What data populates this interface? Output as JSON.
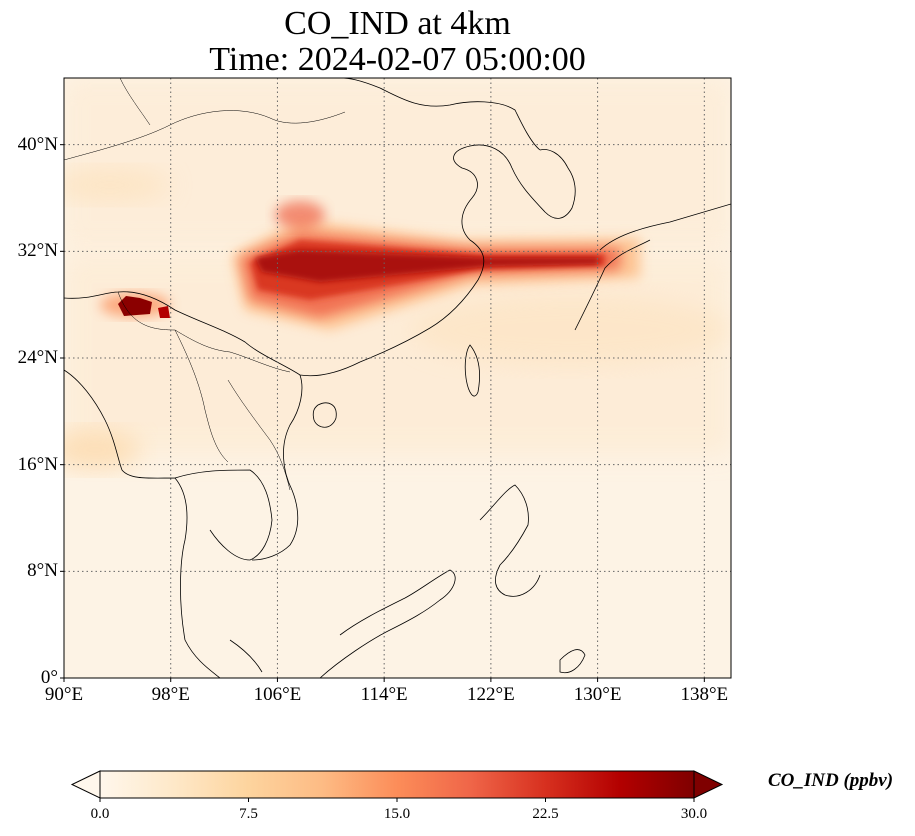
{
  "title": {
    "line1": "CO_IND at 4km",
    "line2": "Time: 2024-02-07 05:00:00"
  },
  "map": {
    "lon_range": [
      90,
      140
    ],
    "lat_range": [
      0,
      45
    ],
    "x_ticks": [
      "90°E",
      "98°E",
      "106°E",
      "114°E",
      "122°E",
      "130°E",
      "138°E"
    ],
    "y_ticks": [
      "0°",
      "8°N",
      "16°N",
      "24°N",
      "32°N",
      "40°N"
    ],
    "grid": "dotted gray at each tick",
    "land_outline_color": "#000000"
  },
  "colorbar": {
    "label": "CO_IND (ppbv)",
    "colormap": "OrRd",
    "range": [
      0,
      30
    ],
    "ticks": [
      "0.0",
      "7.5",
      "15.0",
      "22.5",
      "30.0"
    ],
    "extend": "both",
    "colors": [
      "#fff7ec",
      "#fee8c8",
      "#fdd49e",
      "#fdbb84",
      "#fc8d59",
      "#ef6548",
      "#d7301f",
      "#b30000",
      "#7f0000"
    ]
  }
}
